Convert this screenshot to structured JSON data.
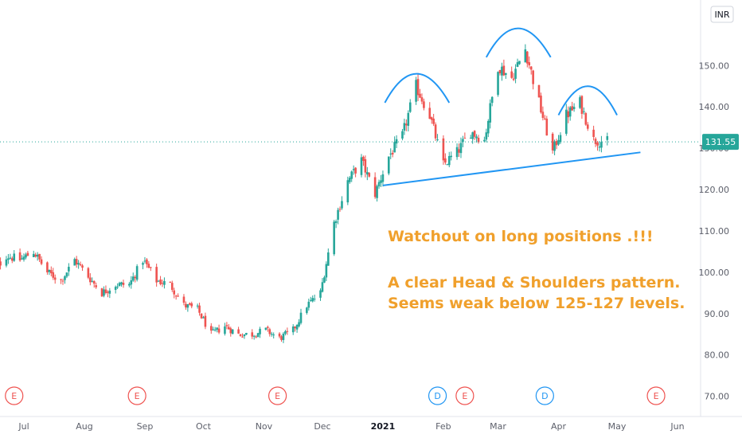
{
  "chart_data": {
    "type": "candlestick",
    "currency": "INR",
    "last_price": "131.55",
    "ylim": [
      68,
      162
    ],
    "yticks": [
      "70.00",
      "80.00",
      "90.00",
      "100.00",
      "110.00",
      "120.00",
      "130.00",
      "140.00",
      "150.00"
    ],
    "xticks": [
      "Jul",
      "Aug",
      "Sep",
      "Oct",
      "Nov",
      "Dec",
      "2021",
      "Feb",
      "Mar",
      "Apr",
      "May",
      "Jun"
    ],
    "xtick_dates": [
      "2020-07-01",
      "2020-08-01",
      "2020-09-01",
      "2020-10-01",
      "2020-11-01",
      "2020-12-01",
      "2021-01-01",
      "2021-02-01",
      "2021-03-01",
      "2021-04-01",
      "2021-05-01",
      "2021-06-01"
    ],
    "grid": false,
    "up_color": "#26a69a",
    "down_color": "#ef5350",
    "close_path": [
      [
        "2020-06-15",
        100
      ],
      [
        "2020-06-22",
        104
      ],
      [
        "2020-06-29",
        103
      ],
      [
        "2020-07-06",
        105
      ],
      [
        "2020-07-13",
        100
      ],
      [
        "2020-07-20",
        98
      ],
      [
        "2020-07-27",
        103
      ],
      [
        "2020-08-03",
        99
      ],
      [
        "2020-08-10",
        95
      ],
      [
        "2020-08-17",
        97
      ],
      [
        "2020-08-24",
        97
      ],
      [
        "2020-08-31",
        103
      ],
      [
        "2020-09-07",
        98
      ],
      [
        "2020-09-14",
        97
      ],
      [
        "2020-09-21",
        92
      ],
      [
        "2020-09-28",
        91
      ],
      [
        "2020-10-05",
        85
      ],
      [
        "2020-10-12",
        87
      ],
      [
        "2020-10-19",
        85
      ],
      [
        "2020-10-26",
        85
      ],
      [
        "2020-11-02",
        86
      ],
      [
        "2020-11-09",
        84
      ],
      [
        "2020-11-16",
        86
      ],
      [
        "2020-11-23",
        92
      ],
      [
        "2020-11-30",
        95
      ],
      [
        "2020-12-07",
        112
      ],
      [
        "2020-12-14",
        122
      ],
      [
        "2020-12-21",
        127
      ],
      [
        "2020-12-28",
        119
      ],
      [
        "2021-01-04",
        128
      ],
      [
        "2021-01-11",
        133
      ],
      [
        "2021-01-18",
        145
      ],
      [
        "2021-01-25",
        138
      ],
      [
        "2021-02-01",
        126
      ],
      [
        "2021-02-08",
        129
      ],
      [
        "2021-02-15",
        134
      ],
      [
        "2021-02-22",
        132
      ],
      [
        "2021-03-01",
        150
      ],
      [
        "2021-03-08",
        147
      ],
      [
        "2021-03-15",
        154
      ],
      [
        "2021-03-22",
        141
      ],
      [
        "2021-03-29",
        129
      ],
      [
        "2021-04-05",
        138
      ],
      [
        "2021-04-12",
        141
      ],
      [
        "2021-04-19",
        132
      ],
      [
        "2021-04-26",
        131.55
      ]
    ],
    "events": [
      {
        "date": "2020-06-26",
        "label": "E",
        "kind": "earnings"
      },
      {
        "date": "2020-08-28",
        "label": "E",
        "kind": "earnings"
      },
      {
        "date": "2020-11-08",
        "label": "E",
        "kind": "earnings"
      },
      {
        "date": "2021-01-29",
        "label": "D",
        "kind": "dividend"
      },
      {
        "date": "2021-02-12",
        "label": "E",
        "kind": "earnings"
      },
      {
        "date": "2021-03-25",
        "label": "D",
        "kind": "dividend"
      },
      {
        "date": "2021-05-21",
        "label": "E",
        "kind": "earnings"
      }
    ],
    "annotations": {
      "line1": "Watchout on long positions .!!!",
      "line2": "A clear Head & Shoulders pattern.",
      "line3": "Seems weak below 125-127 levels.",
      "color": "#f0a02c",
      "drawing_color": "#2196f3"
    }
  }
}
